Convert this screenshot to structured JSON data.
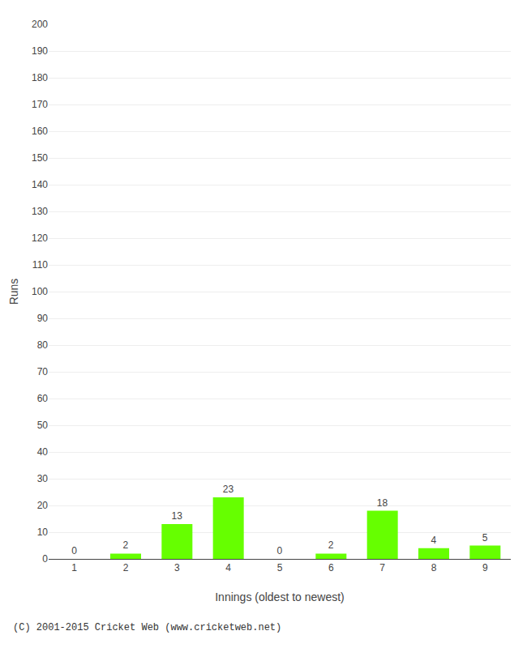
{
  "chart_data": {
    "type": "bar",
    "xlabel": "Innings (oldest to newest)",
    "ylabel": "Runs",
    "categories": [
      "1",
      "2",
      "3",
      "4",
      "5",
      "6",
      "7",
      "8",
      "9"
    ],
    "values": [
      0,
      2,
      13,
      23,
      0,
      2,
      18,
      4,
      5
    ],
    "color": "#66ff00",
    "ylim": [
      0,
      200
    ],
    "yticks": [
      0,
      10,
      20,
      30,
      40,
      50,
      60,
      70,
      80,
      90,
      100,
      110,
      120,
      130,
      140,
      150,
      160,
      170,
      180,
      190,
      200
    ],
    "grid": true,
    "data_labels": true,
    "annotations": [
      "(C) 2001-2015 Cricket Web (www.cricketweb.net)"
    ]
  }
}
